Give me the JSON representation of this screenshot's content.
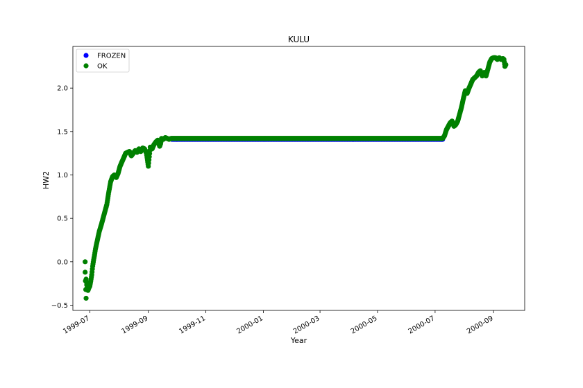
{
  "chart_data": {
    "type": "scatter",
    "title": "KULU",
    "xlabel": "Year",
    "ylabel": "HW2",
    "xlim": [
      "1999-06-13",
      "2000-10-04"
    ],
    "ylim": [
      -0.56,
      2.48
    ],
    "x_ticks": [
      "1999-07",
      "1999-09",
      "1999-11",
      "2000-01",
      "2000-03",
      "2000-05",
      "2000-07",
      "2000-09"
    ],
    "y_ticks": [
      -0.5,
      0.0,
      0.5,
      1.0,
      1.5,
      2.0
    ],
    "y_tick_labels": [
      "−0.5",
      "0.0",
      "0.5",
      "1.0",
      "1.5",
      "2.0"
    ],
    "grid": false,
    "legend": {
      "position": "top-left"
    },
    "series": [
      {
        "name": "FROZEN",
        "color": "#0000ff",
        "x": [
          "1999-09-26",
          "2000-07-09"
        ],
        "y": [
          1.41,
          1.41
        ],
        "style": "dense-daily"
      },
      {
        "name": "OK",
        "color": "#008000",
        "x": [
          "1999-06-26",
          "1999-06-26",
          "1999-06-27",
          "1999-06-27",
          "1999-06-28",
          "1999-06-28",
          "1999-06-29",
          "1999-06-30",
          "1999-07-01",
          "1999-07-02",
          "1999-07-03",
          "1999-07-04",
          "1999-07-05",
          "1999-07-06",
          "1999-07-07",
          "1999-07-09",
          "1999-07-11",
          "1999-07-13",
          "1999-07-15",
          "1999-07-17",
          "1999-07-19",
          "1999-07-21",
          "1999-07-23",
          "1999-07-25",
          "1999-07-27",
          "1999-07-29",
          "1999-07-31",
          "1999-08-02",
          "1999-08-04",
          "1999-08-06",
          "1999-08-08",
          "1999-08-10",
          "1999-08-12",
          "1999-08-14",
          "1999-08-16",
          "1999-08-18",
          "1999-08-20",
          "1999-08-22",
          "1999-08-24",
          "1999-08-26",
          "1999-08-28",
          "1999-08-30",
          "1999-09-01",
          "1999-09-03",
          "1999-09-05",
          "1999-09-07",
          "1999-09-09",
          "1999-09-11",
          "1999-09-13",
          "1999-09-14",
          "1999-09-15",
          "1999-09-17",
          "1999-09-19",
          "1999-09-21",
          "1999-09-23",
          "1999-09-25",
          "2000-07-09",
          "2000-07-11",
          "2000-07-13",
          "2000-07-15",
          "2000-07-17",
          "2000-07-19",
          "2000-07-21",
          "2000-07-23",
          "2000-07-25",
          "2000-07-27",
          "2000-07-29",
          "2000-07-31",
          "2000-08-02",
          "2000-08-04",
          "2000-08-06",
          "2000-08-08",
          "2000-08-10",
          "2000-08-12",
          "2000-08-14",
          "2000-08-16",
          "2000-08-18",
          "2000-08-20",
          "2000-08-22",
          "2000-08-24",
          "2000-08-26",
          "2000-08-28",
          "2000-08-30",
          "2000-09-01",
          "2000-09-03",
          "2000-09-05",
          "2000-09-07",
          "2000-09-09",
          "2000-09-11",
          "2000-09-12",
          "2000-09-13",
          "2000-09-14"
        ],
        "y": [
          0.0,
          -0.12,
          -0.42,
          -0.2,
          -0.3,
          -0.25,
          -0.33,
          -0.3,
          -0.28,
          -0.22,
          -0.15,
          -0.05,
          0.02,
          0.08,
          0.15,
          0.25,
          0.35,
          0.42,
          0.5,
          0.58,
          0.66,
          0.8,
          0.92,
          0.98,
          1.0,
          0.97,
          1.02,
          1.1,
          1.15,
          1.2,
          1.25,
          1.26,
          1.27,
          1.22,
          1.25,
          1.28,
          1.26,
          1.3,
          1.27,
          1.31,
          1.3,
          1.25,
          1.1,
          1.32,
          1.3,
          1.35,
          1.38,
          1.4,
          1.33,
          1.36,
          1.42,
          1.41,
          1.43,
          1.42,
          1.41,
          1.42,
          1.42,
          1.45,
          1.52,
          1.56,
          1.6,
          1.62,
          1.56,
          1.58,
          1.62,
          1.7,
          1.78,
          1.88,
          1.97,
          1.94,
          2.0,
          2.05,
          2.1,
          2.12,
          2.14,
          2.18,
          2.2,
          2.14,
          2.18,
          2.14,
          2.22,
          2.3,
          2.34,
          2.35,
          2.35,
          2.33,
          2.35,
          2.33,
          2.34,
          2.33,
          2.25,
          2.27
        ]
      }
    ]
  }
}
